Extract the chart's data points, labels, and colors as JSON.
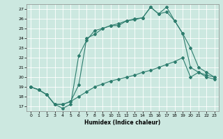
{
  "xlabel": "Humidex (Indice chaleur)",
  "bg_color": "#cce8e0",
  "grid_color": "#ffffff",
  "line_color": "#2e7d6e",
  "xlim": [
    -0.5,
    23.5
  ],
  "ylim": [
    16.5,
    27.5
  ],
  "yticks": [
    17,
    18,
    19,
    20,
    21,
    22,
    23,
    24,
    25,
    26,
    27
  ],
  "xticks": [
    0,
    1,
    2,
    3,
    4,
    5,
    6,
    7,
    8,
    9,
    10,
    11,
    12,
    13,
    14,
    15,
    16,
    17,
    18,
    19,
    20,
    21,
    22,
    23
  ],
  "line1_x": [
    0,
    1,
    2,
    3,
    4,
    5,
    6,
    7,
    8,
    9,
    10,
    11,
    12,
    13,
    14,
    15,
    16,
    17,
    18,
    19,
    20,
    21,
    22,
    23
  ],
  "line1_y": [
    19.0,
    18.7,
    18.2,
    17.2,
    16.8,
    17.2,
    22.2,
    23.8,
    24.8,
    25.0,
    25.3,
    25.3,
    25.8,
    25.9,
    26.1,
    27.2,
    26.5,
    27.2,
    25.8,
    24.5,
    21.0,
    20.5,
    20.0,
    19.8
  ],
  "line2_x": [
    0,
    1,
    2,
    3,
    4,
    5,
    6,
    7,
    8,
    9,
    10,
    11,
    12,
    13,
    14,
    15,
    16,
    17,
    18,
    19,
    20,
    21,
    22,
    23
  ],
  "line2_y": [
    19.0,
    18.7,
    18.2,
    17.2,
    17.2,
    17.5,
    19.2,
    24.0,
    24.4,
    25.0,
    25.3,
    25.5,
    25.8,
    26.0,
    26.1,
    27.2,
    26.5,
    26.7,
    25.8,
    24.5,
    23.0,
    21.0,
    20.5,
    20.0
  ],
  "line3_x": [
    0,
    1,
    2,
    3,
    4,
    5,
    6,
    7,
    8,
    9,
    10,
    11,
    12,
    13,
    14,
    15,
    16,
    17,
    18,
    19,
    20,
    21,
    22,
    23
  ],
  "line3_y": [
    19.0,
    18.7,
    18.2,
    17.2,
    17.2,
    17.5,
    18.0,
    18.5,
    19.0,
    19.3,
    19.6,
    19.8,
    20.0,
    20.2,
    20.5,
    20.7,
    21.0,
    21.3,
    21.6,
    22.0,
    20.0,
    20.5,
    20.2,
    20.0
  ]
}
